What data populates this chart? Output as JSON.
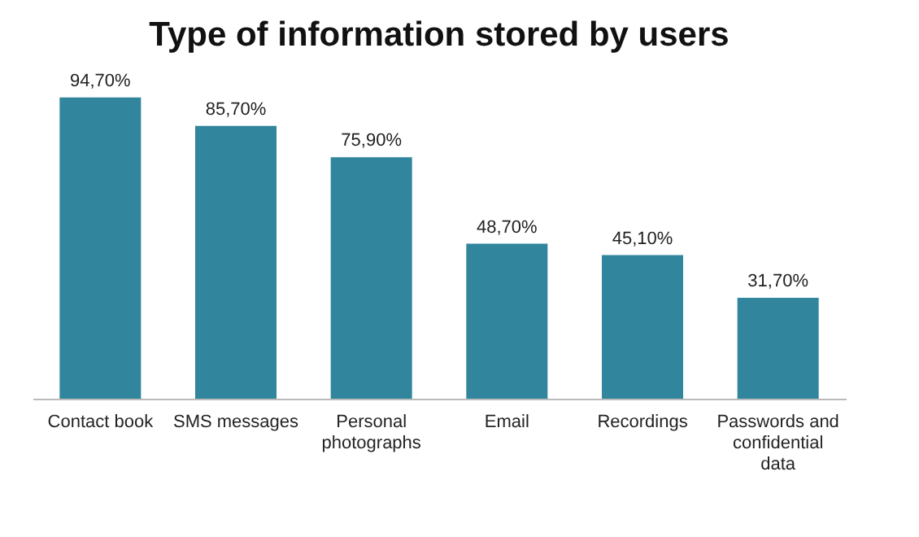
{
  "chart_data": {
    "type": "bar",
    "title": "Type of information stored by users",
    "categories": [
      "Contact book",
      "SMS messages",
      "Personal photographs",
      "Email",
      "Recordings",
      "Passwords and confidential data"
    ],
    "values": [
      94.7,
      85.7,
      75.9,
      48.7,
      45.1,
      31.7
    ],
    "value_labels": [
      "94,70%",
      "85,70%",
      "75,90%",
      "48,70%",
      "45,10%",
      "31,70%"
    ],
    "color": "#31859c",
    "grid": false
  }
}
